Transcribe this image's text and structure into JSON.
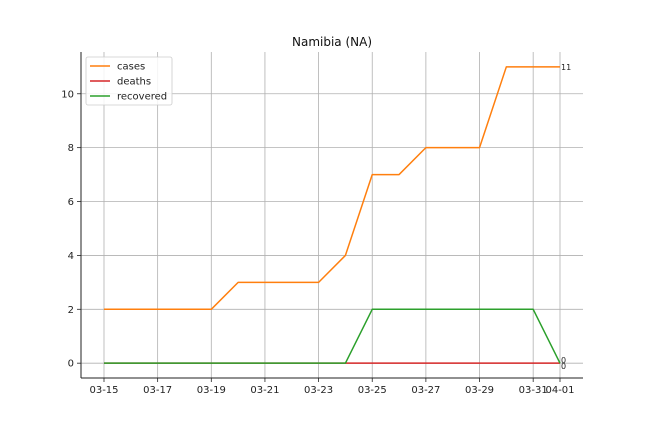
{
  "chart_data": {
    "type": "line",
    "title": "Namibia (NA)",
    "xlabel": "",
    "ylabel": "",
    "x": [
      "03-15",
      "03-16",
      "03-17",
      "03-18",
      "03-19",
      "03-20",
      "03-21",
      "03-22",
      "03-23",
      "03-24",
      "03-25",
      "03-26",
      "03-27",
      "03-28",
      "03-29",
      "03-30",
      "03-31",
      "04-01"
    ],
    "x_tick_labels": [
      "03-15",
      "03-17",
      "03-19",
      "03-21",
      "03-23",
      "03-25",
      "03-27",
      "03-29",
      "03-31",
      "04-01"
    ],
    "y_ticks": [
      0,
      2,
      4,
      6,
      8,
      10
    ],
    "ylim": [
      -0.55,
      11.55
    ],
    "grid": true,
    "legend_position": "upper-left",
    "series": [
      {
        "name": "cases",
        "color": "#ff7f0e",
        "values": [
          2,
          2,
          2,
          2,
          2,
          3,
          3,
          3,
          3,
          4,
          7,
          7,
          8,
          8,
          8,
          11,
          11,
          11
        ],
        "end_label": "11"
      },
      {
        "name": "deaths",
        "color": "#d62728",
        "values": [
          0,
          0,
          0,
          0,
          0,
          0,
          0,
          0,
          0,
          0,
          0,
          0,
          0,
          0,
          0,
          0,
          0,
          0
        ],
        "end_label": "0"
      },
      {
        "name": "recovered",
        "color": "#2ca02c",
        "values": [
          0,
          0,
          0,
          0,
          0,
          0,
          0,
          0,
          0,
          0,
          2,
          2,
          2,
          2,
          2,
          2,
          2,
          0
        ],
        "end_label": "0"
      }
    ]
  }
}
